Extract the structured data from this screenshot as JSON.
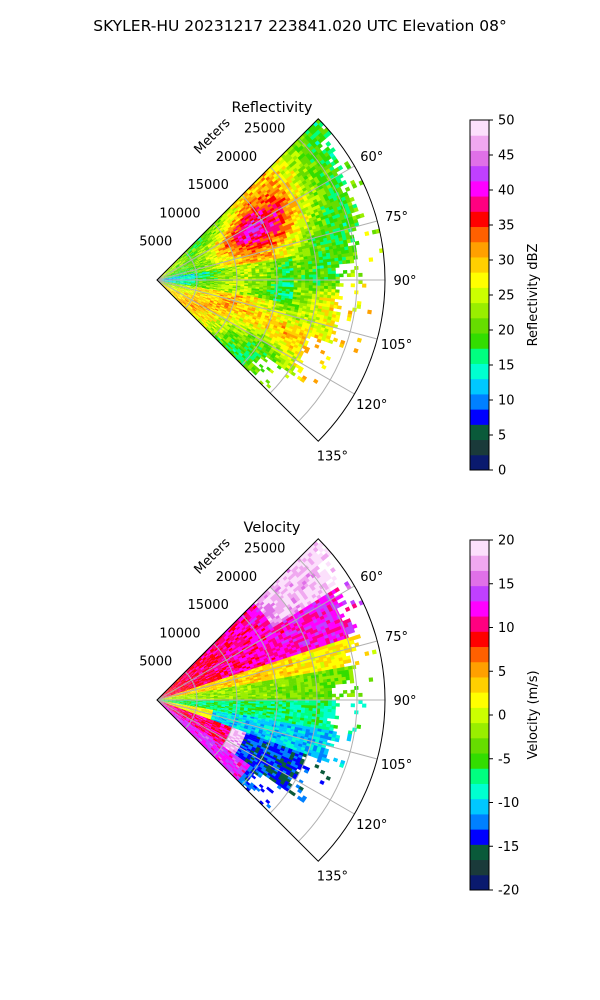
{
  "suptitle": "SKYLER-HU  20231217  223841.020 UTC Elevation 08°",
  "chart_data": [
    {
      "type": "heatmap",
      "title": "Reflectivity",
      "projection": "polar-sector",
      "theta_range_deg": [
        45,
        135
      ],
      "theta_ticks": [
        "60°",
        "75°",
        "90°",
        "105°",
        "120°",
        "135°"
      ],
      "r_range_m": [
        0,
        28500
      ],
      "r_ticks": [
        "5000",
        "10000",
        "15000",
        "20000",
        "25000"
      ],
      "r_label": "Meters",
      "colorbar": {
        "label": "Reflectivity dBZ",
        "range": [
          0,
          50
        ],
        "ticks": [
          "0",
          "5",
          "10",
          "15",
          "20",
          "25",
          "30",
          "35",
          "40",
          "45",
          "50"
        ],
        "colors": [
          "#0a1a6e",
          "#1a3a3a",
          "#0a5a3a",
          "#0000ff",
          "#0080ff",
          "#00c8ff",
          "#00ffd0",
          "#00ff80",
          "#33dd00",
          "#66dd00",
          "#99ee00",
          "#ccff00",
          "#ffff00",
          "#ffd000",
          "#ffa000",
          "#ff6000",
          "#ff0000",
          "#ff0080",
          "#ff00ff",
          "#c040ff",
          "#e070e8",
          "#f0a8f0",
          "#fce0fc"
        ]
      },
      "grid": true
    },
    {
      "type": "heatmap",
      "title": "Velocity",
      "projection": "polar-sector",
      "theta_range_deg": [
        45,
        135
      ],
      "theta_ticks": [
        "60°",
        "75°",
        "90°",
        "105°",
        "120°",
        "135°"
      ],
      "r_range_m": [
        0,
        28500
      ],
      "r_ticks": [
        "5000",
        "10000",
        "15000",
        "20000",
        "25000"
      ],
      "r_label": "Meters",
      "colorbar": {
        "label": "Velocity (m/s)",
        "range": [
          -20,
          20
        ],
        "ticks": [
          "-20",
          "-15",
          "-10",
          "-5",
          "0",
          "5",
          "10",
          "15",
          "20"
        ],
        "colors": [
          "#0a1a6e",
          "#1a3a3a",
          "#0a5a3a",
          "#0000ff",
          "#0080ff",
          "#00c8ff",
          "#00ffd0",
          "#00ff80",
          "#33dd00",
          "#66dd00",
          "#99ee00",
          "#ccff00",
          "#ffff00",
          "#ffd000",
          "#ffa000",
          "#ff6000",
          "#ff0000",
          "#ff0080",
          "#ff00ff",
          "#c040ff",
          "#e070e8",
          "#f0a8f0",
          "#fce0fc"
        ]
      },
      "grid": true
    }
  ]
}
